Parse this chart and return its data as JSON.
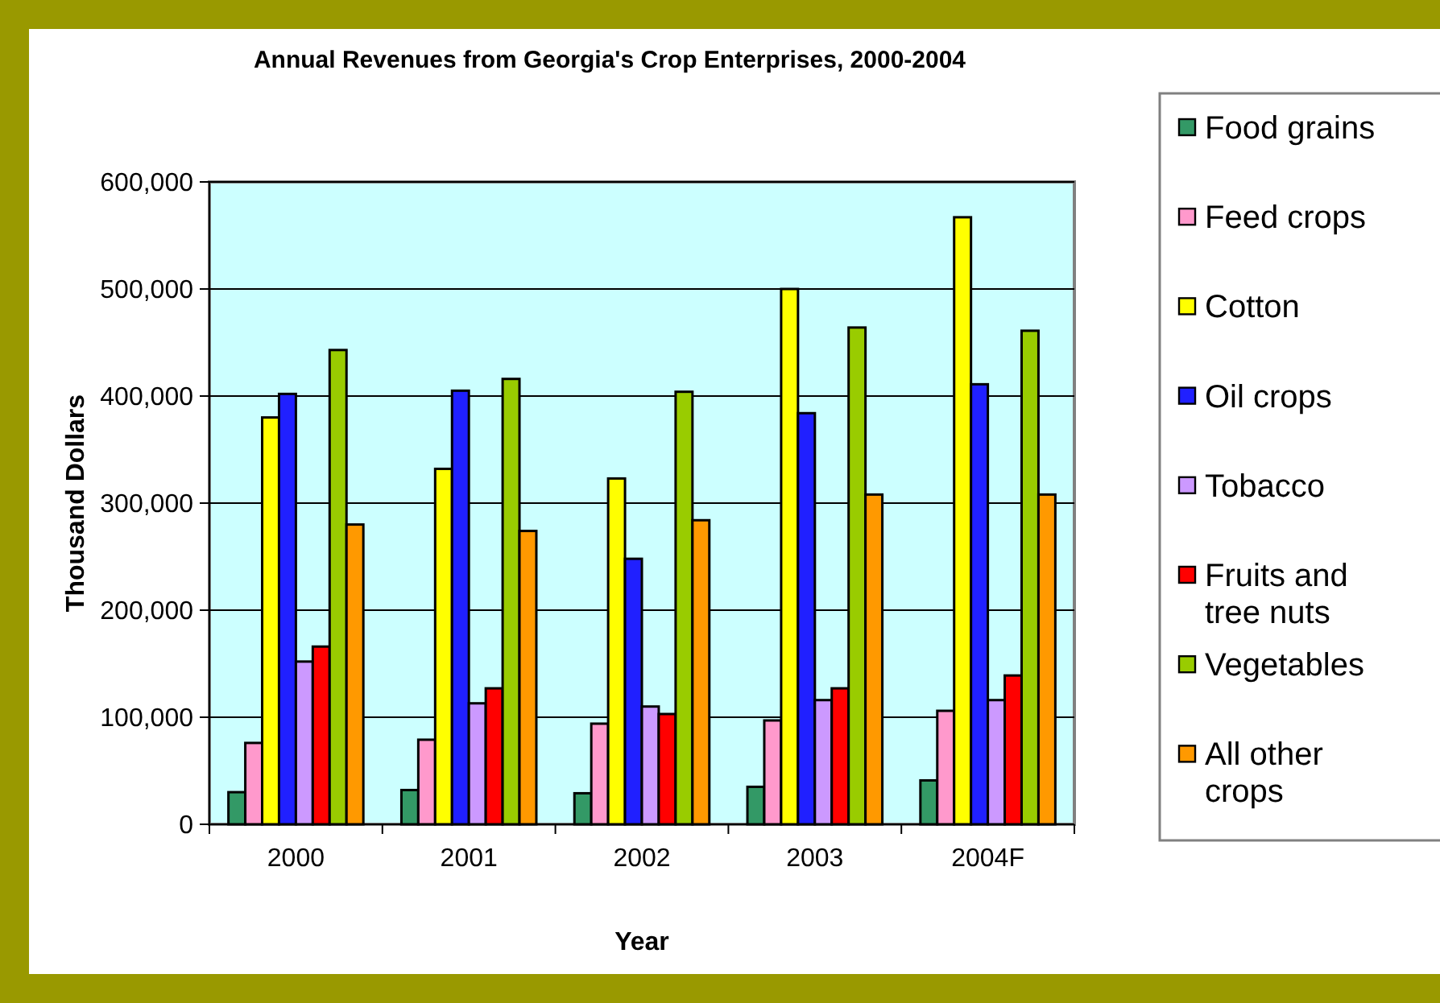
{
  "chart_data": {
    "type": "bar",
    "title": "Annual Revenues from Georgia's Crop Enterprises, 2000-2004",
    "xlabel": "Year",
    "ylabel": "Thousand Dollars",
    "categories": [
      "2000",
      "2001",
      "2002",
      "2003",
      "2004F"
    ],
    "series": [
      {
        "name": "Food grains",
        "color": "#339966",
        "values": [
          30000,
          32000,
          29000,
          35000,
          41000
        ]
      },
      {
        "name": "Feed crops",
        "color": "#ff99cc",
        "values": [
          76000,
          79000,
          94000,
          97000,
          106000
        ]
      },
      {
        "name": "Cotton",
        "color": "#ffff00",
        "values": [
          380000,
          332000,
          323000,
          500000,
          567000
        ]
      },
      {
        "name": "Oil crops",
        "color": "#2020ff",
        "values": [
          402000,
          405000,
          248000,
          384000,
          411000
        ]
      },
      {
        "name": "Tobacco",
        "color": "#cc99ff",
        "values": [
          152000,
          113000,
          110000,
          116000,
          116000
        ]
      },
      {
        "name": "Fruits and tree nuts",
        "color": "#ff0000",
        "values": [
          166000,
          127000,
          103000,
          127000,
          139000
        ]
      },
      {
        "name": "Vegetables",
        "color": "#99cc00",
        "values": [
          443000,
          416000,
          404000,
          464000,
          461000
        ]
      },
      {
        "name": "All other crops",
        "color": "#ff9900",
        "values": [
          280000,
          274000,
          284000,
          308000,
          308000
        ]
      }
    ],
    "ylim": [
      0,
      600000
    ],
    "yticks": [
      {
        "value": 0,
        "label": "0"
      },
      {
        "value": 100000,
        "label": "100,000"
      },
      {
        "value": 200000,
        "label": "200,000"
      },
      {
        "value": 300000,
        "label": "300,000"
      },
      {
        "value": 400000,
        "label": "400,000"
      },
      {
        "value": 500000,
        "label": "500,000"
      },
      {
        "value": 600000,
        "label": "600,000"
      }
    ],
    "grid": "y",
    "legend": "right"
  }
}
